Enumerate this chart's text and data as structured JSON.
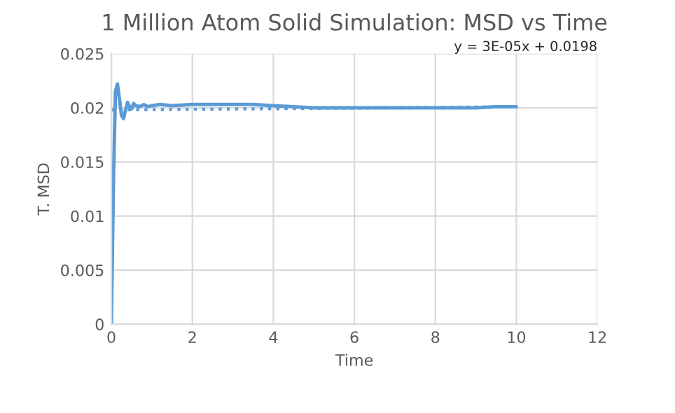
{
  "chart_data": {
    "type": "line",
    "title": "1 Million Atom Solid Simulation: MSD vs Time",
    "xlabel": "Time",
    "ylabel": "T. MSD",
    "annotations": [
      "y = 3E-05x + 0.0198"
    ],
    "series": [
      {
        "color": "#5b9bd5",
        "line_style": "solid",
        "x": [
          0,
          0.05,
          0.1,
          0.15,
          0.2,
          0.25,
          0.3,
          0.35,
          0.4,
          0.45,
          0.5,
          0.55,
          0.6,
          0.7,
          0.8,
          0.9,
          1.0,
          1.2,
          1.5,
          2,
          2.5,
          3,
          3.5,
          4,
          4.5,
          5,
          5.5,
          6,
          6.5,
          7,
          7.5,
          8,
          8.5,
          9,
          9.5,
          10
        ],
        "values": [
          0,
          0.013,
          0.0215,
          0.0222,
          0.0208,
          0.0193,
          0.019,
          0.0198,
          0.0205,
          0.0201,
          0.0199,
          0.0204,
          0.0202,
          0.0201,
          0.0203,
          0.0201,
          0.0202,
          0.0203,
          0.0202,
          0.0203,
          0.0203,
          0.0203,
          0.0203,
          0.0202,
          0.0201,
          0.02,
          0.02,
          0.02,
          0.02,
          0.02,
          0.02,
          0.02,
          0.02,
          0.02,
          0.0201,
          0.0201
        ]
      },
      {
        "color": "#5b9bd5",
        "line_style": "dotted",
        "x": [
          0,
          10
        ],
        "values": [
          0.0198,
          0.0201
        ]
      }
    ],
    "xlim": [
      0,
      12
    ],
    "xticks": [
      0,
      2,
      4,
      6,
      8,
      10,
      12
    ],
    "ylim": [
      0,
      0.025
    ],
    "yticks": [
      {
        "value": 0,
        "label": "0"
      },
      0.005,
      0.01,
      0.015,
      0.02,
      0.025
    ],
    "grid": true,
    "legend": false
  }
}
